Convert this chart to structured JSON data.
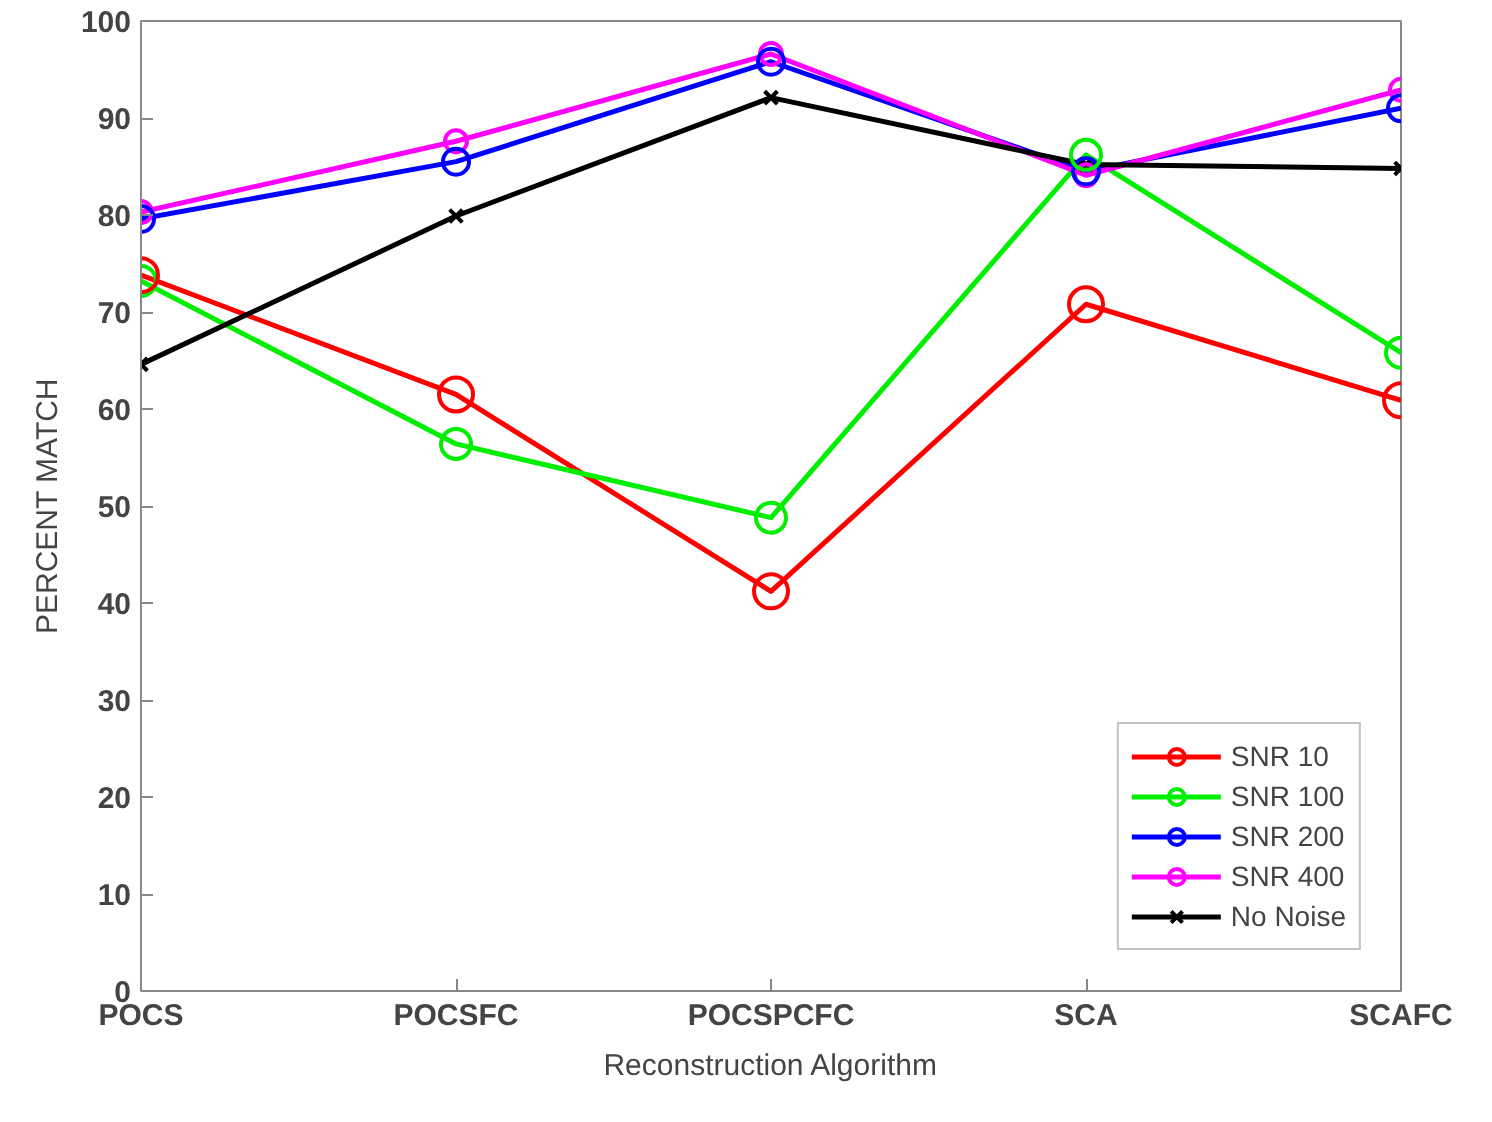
{
  "chart_data": {
    "type": "line",
    "xlabel": "Reconstruction Algorithm",
    "ylabel": "PERCENT MATCH",
    "categories": [
      "POCS",
      "POCSFC",
      "POCSPCFC",
      "SCA",
      "SCAFC"
    ],
    "ylim": [
      0,
      100
    ],
    "yticks": [
      0,
      10,
      20,
      30,
      40,
      50,
      60,
      70,
      80,
      90,
      100
    ],
    "grid": false,
    "legend": "bottom right",
    "series": [
      {
        "name": "SNR 10",
        "color": "#ff0000",
        "marker": "circle",
        "values": [
          73.8,
          61.5,
          41.2,
          70.8,
          60.9
        ]
      },
      {
        "name": "SNR 100",
        "color": "#00ee00",
        "marker": "circle",
        "values": [
          73.2,
          56.4,
          48.8,
          86.2,
          65.8
        ]
      },
      {
        "name": "SNR 200",
        "color": "#0000ff",
        "marker": "circle",
        "values": [
          79.6,
          85.5,
          95.8,
          84.5,
          91.0
        ]
      },
      {
        "name": "SNR 400",
        "color": "#ff00ff",
        "marker": "circle",
        "values": [
          80.3,
          87.6,
          96.6,
          84.1,
          92.9
        ]
      },
      {
        "name": "No Noise",
        "color": "#000000",
        "marker": "cross",
        "values": [
          64.6,
          79.9,
          92.1,
          85.2,
          84.8
        ]
      }
    ]
  }
}
